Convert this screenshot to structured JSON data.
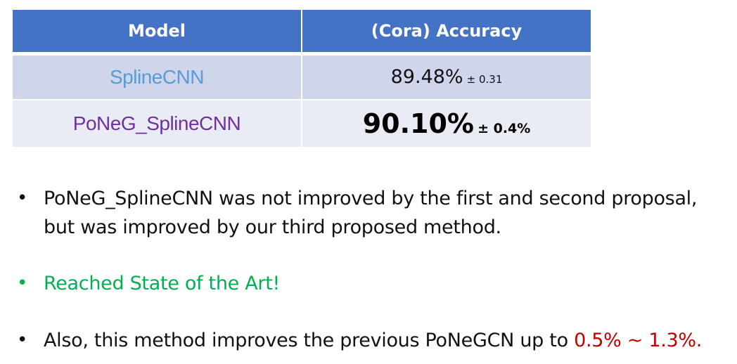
{
  "table": {
    "headers": [
      "Model",
      "(Cora) Accuracy"
    ],
    "rows": [
      {
        "model": "SplineCNN",
        "accuracy": "89.48%",
        "std": "± 0.31"
      },
      {
        "model": "PoNeG_SplineCNN",
        "accuracy": "90.10%",
        "std": "± 0.4%"
      }
    ]
  },
  "bullets": {
    "b1": "PoNeG_SplineCNN was not improved by the first and second proposal, but was improved by our third proposed method.",
    "b2": "Reached State of the Art!",
    "b3_prefix": "Also, this method improves the previous PoNeGCN up to ",
    "b3_highlight": "0.5% ~ 1.3%."
  },
  "colors": {
    "header_bg": "#4472c4",
    "row1_bg": "#cfd5ea",
    "row2_bg": "#e9ebf5",
    "splinecnn_text": "#5b9bd5",
    "poneg_text": "#7030a0",
    "green_text": "#00b050",
    "red_text": "#c00000"
  },
  "icons": {
    "bullet": "bullet-dot"
  }
}
